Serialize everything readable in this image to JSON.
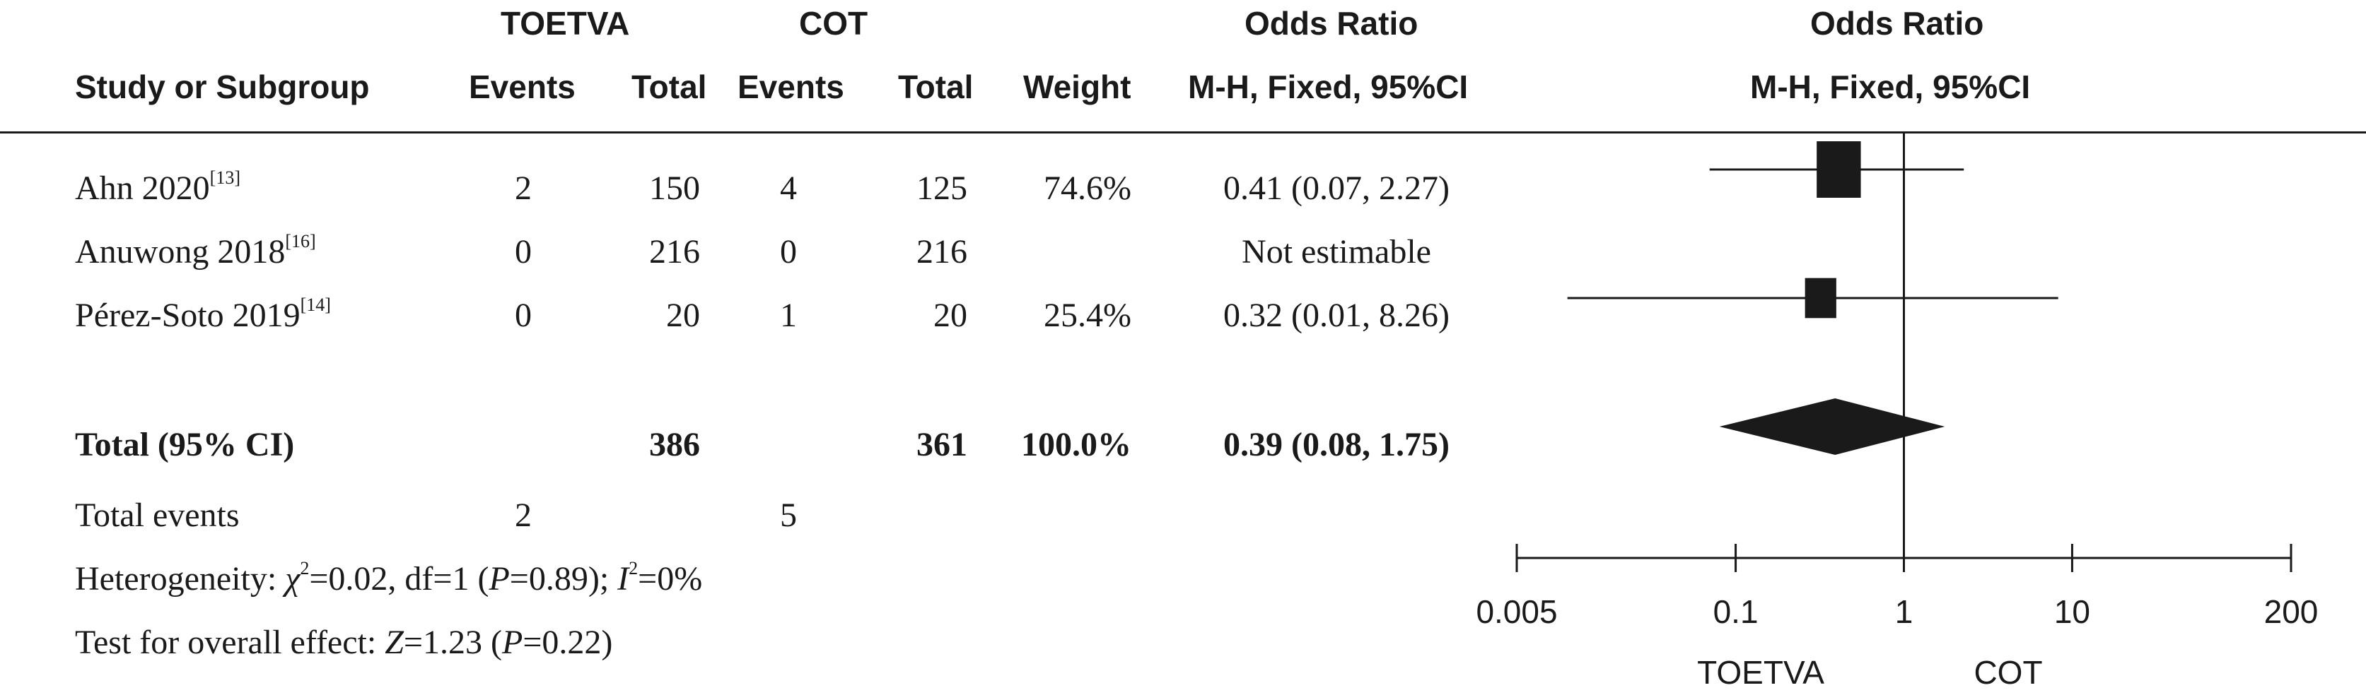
{
  "headers": {
    "group1": "TOETVA",
    "group2": "COT",
    "or_left_1": "Odds Ratio",
    "or_left_2": "M-H, Fixed, 95%CI",
    "or_right_1": "Odds Ratio",
    "or_right_2": "M-H, Fixed, 95%CI",
    "study": "Study or Subgroup",
    "events1": "Events",
    "total1": "Total",
    "events2": "Events",
    "total2": "Total",
    "weight": "Weight"
  },
  "studies": [
    {
      "name": "Ahn 2020",
      "ref": "[13]",
      "e1": "2",
      "t1": "150",
      "e2": "4",
      "t2": "125",
      "weight": "74.6%",
      "ci": "0.41 (0.07, 2.27)"
    },
    {
      "name": "Anuwong 2018",
      "ref": "[16]",
      "e1": "0",
      "t1": "216",
      "e2": "0",
      "t2": "216",
      "weight": "",
      "ci": "Not estimable"
    },
    {
      "name": "Pérez-Soto 2019",
      "ref": "[14]",
      "e1": "0",
      "t1": "20",
      "e2": "1",
      "t2": "20",
      "weight": "25.4%",
      "ci": "0.32 (0.01, 8.26)"
    }
  ],
  "total": {
    "label": "Total (95% CI)",
    "t1": "386",
    "t2": "361",
    "weight": "100.0%",
    "ci": "0.39 (0.08, 1.75)"
  },
  "total_events": {
    "label": "Total events",
    "e1": "2",
    "e2": "5"
  },
  "heterogeneity": {
    "prefix": "Heterogeneity: ",
    "chi": "χ",
    "chi_sup": "2",
    "mid": "=0.02, df=1 (",
    "p": "P",
    "mid2": "=0.89); ",
    "i": "I",
    "i_sup": "2",
    "end": "=0%"
  },
  "overall": {
    "prefix": "Test for overall effect: ",
    "z": "Z",
    "mid": "=1.23 (",
    "p": "P",
    "end": "=0.22)"
  },
  "chart_data": {
    "type": "forest",
    "scale": "log",
    "xlim": [
      0.005,
      200
    ],
    "ticks": [
      0.005,
      0.1,
      1,
      10,
      200
    ],
    "tick_labels": [
      "0.005",
      "0.1",
      "1",
      "10",
      "200"
    ],
    "favours_left": "TOETVA",
    "favours_right": "COT",
    "series": [
      {
        "name": "Ahn 2020",
        "or": 0.41,
        "lo": 0.07,
        "hi": 2.27,
        "weight": 74.6
      },
      {
        "name": "Pérez-Soto 2019",
        "or": 0.32,
        "lo": 0.01,
        "hi": 8.26,
        "weight": 25.4
      }
    ],
    "pooled": {
      "or": 0.39,
      "lo": 0.08,
      "hi": 1.75
    }
  }
}
